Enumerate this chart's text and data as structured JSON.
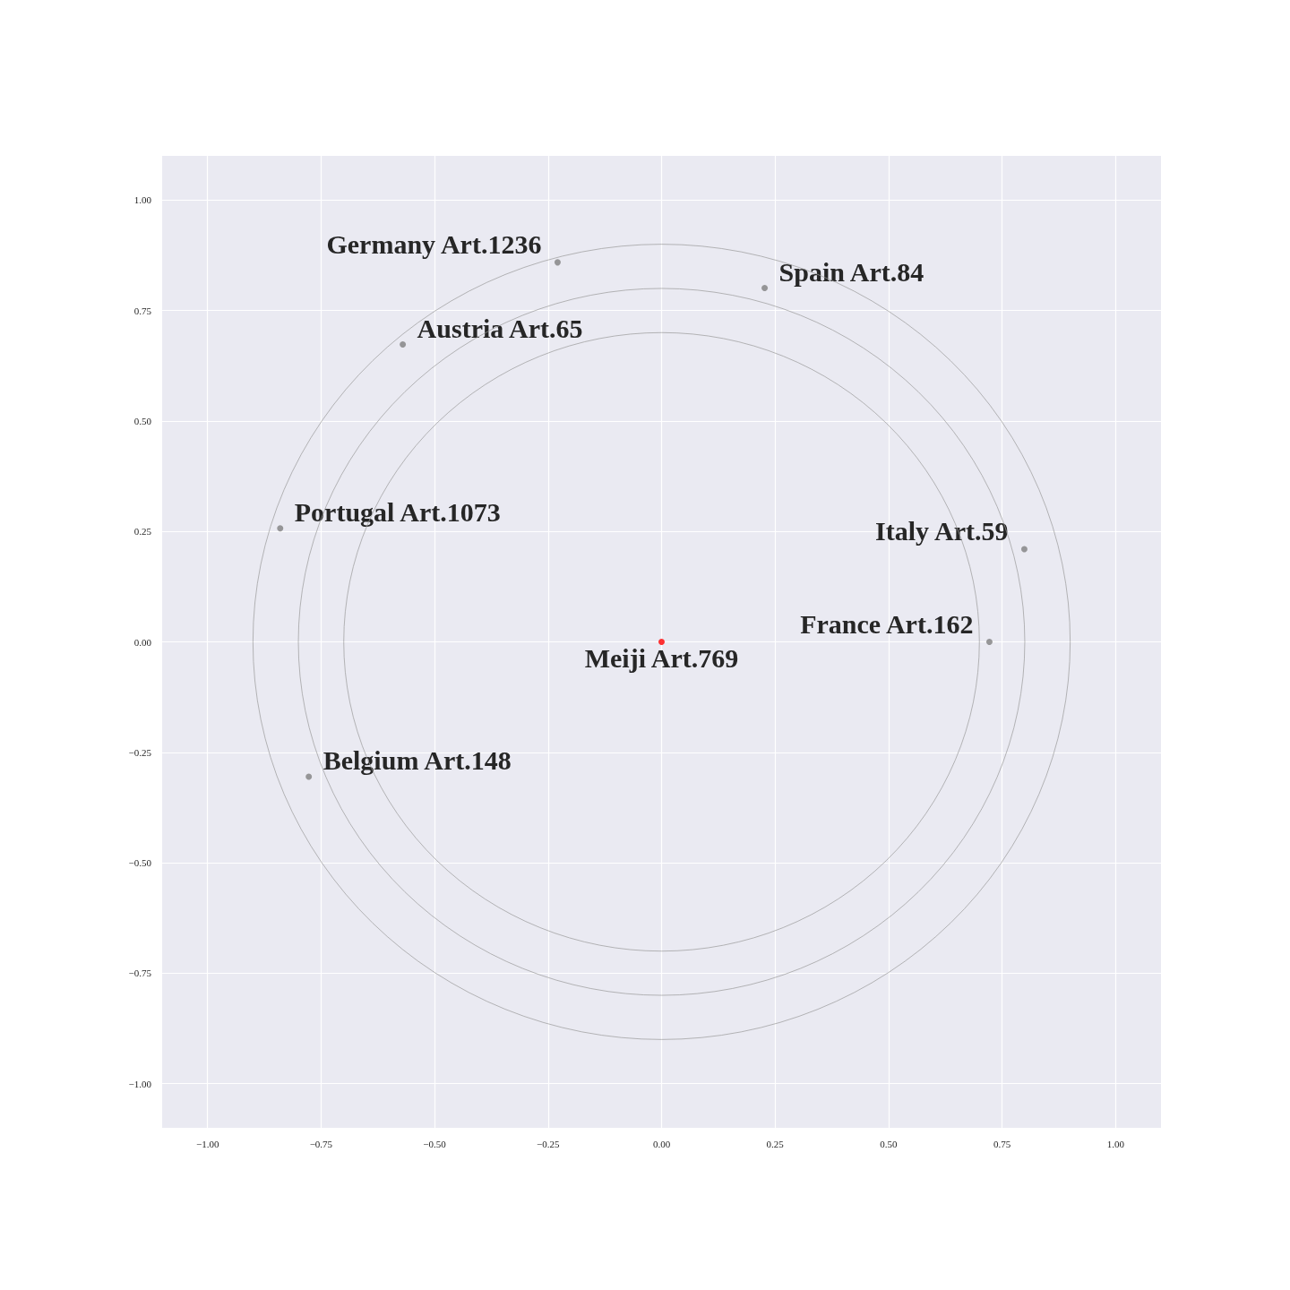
{
  "chart_data": {
    "type": "scatter",
    "series": [
      {
        "color": "#808080",
        "x": [
          -0.229,
          0.227,
          -0.57,
          -0.84,
          0.799,
          0.722,
          -0.777
        ],
        "values": [
          0.859,
          0.801,
          0.673,
          0.257,
          0.21,
          0.0,
          -0.305
        ]
      },
      {
        "color": "#ff0000",
        "x": [
          0.0
        ],
        "values": [
          0.0
        ]
      }
    ],
    "annotations": [
      {
        "text": "Germany Art.1236",
        "x": -0.229,
        "y": 0.859
      },
      {
        "text": "Spain Art.84",
        "x": 0.227,
        "y": 0.801
      },
      {
        "text": "Austria Art.65",
        "x": -0.57,
        "y": 0.673
      },
      {
        "text": "Portugal Art.1073",
        "x": -0.84,
        "y": 0.257
      },
      {
        "text": "Italy Art.59",
        "x": 0.799,
        "y": 0.21
      },
      {
        "text": "France Art.162",
        "x": 0.722,
        "y": 0.0
      },
      {
        "text": "Belgium Art.148",
        "x": -0.777,
        "y": -0.305
      },
      {
        "text": "Meiji Art.769",
        "x": 0.0,
        "y": 0.0
      }
    ],
    "xlim": [
      -1.1,
      1.1
    ],
    "ylim": [
      -1.1,
      1.1
    ],
    "xticks": [
      {
        "value": -1,
        "label": "−1.00"
      },
      {
        "value": -0.75,
        "label": "−0.75"
      },
      {
        "value": -0.5,
        "label": "−0.50"
      },
      {
        "value": -0.25,
        "label": "−0.25"
      },
      {
        "value": 0,
        "label": "0.00"
      },
      {
        "value": 0.25,
        "label": "0.25"
      },
      {
        "value": 0.5,
        "label": "0.50"
      },
      {
        "value": 0.75,
        "label": "0.75"
      },
      {
        "value": 1,
        "label": "1.00"
      }
    ],
    "yticks": [
      {
        "value": -1,
        "label": "−1.00"
      },
      {
        "value": -0.75,
        "label": "−0.75"
      },
      {
        "value": -0.5,
        "label": "−0.50"
      },
      {
        "value": -0.25,
        "label": "−0.25"
      },
      {
        "value": 0,
        "label": "0.00"
      },
      {
        "value": 0.25,
        "label": "0.25"
      },
      {
        "value": 0.5,
        "label": "0.50"
      },
      {
        "value": 0.75,
        "label": "0.75"
      },
      {
        "value": 1,
        "label": "1.00"
      }
    ],
    "grid": true,
    "marker": "circle"
  }
}
